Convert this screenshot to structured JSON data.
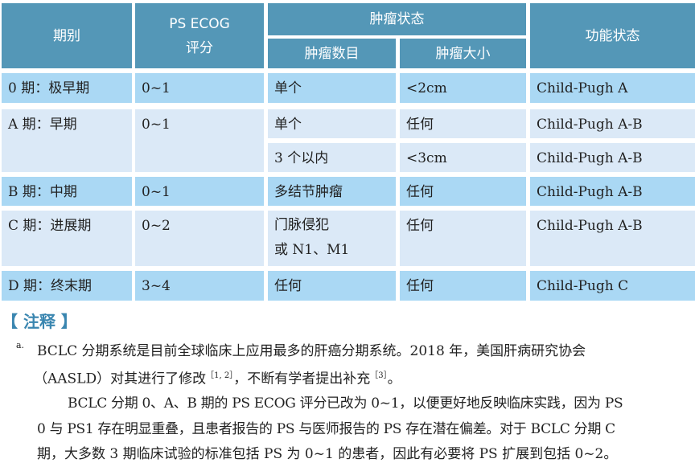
{
  "table": {
    "headers": {
      "stage": "期别",
      "ps": "PS ECOG",
      "ps2": "评分",
      "tumor_status": "肿瘤状态",
      "tumor_count": "肿瘤数目",
      "tumor_size": "肿瘤大小",
      "function": "功能状态"
    },
    "rows": [
      {
        "stage": "0 期：极早期",
        "ps": "0~1",
        "count": "单个",
        "size": "<2cm",
        "func": "Child-Pugh A"
      },
      {
        "stage": "A 期：早期",
        "ps": "0~1",
        "count": "单个",
        "size": "任何",
        "func": "Child-Pugh A-B",
        "count2": "3 个以内",
        "size2": "<3cm",
        "func2": "Child-Pugh A-B"
      },
      {
        "stage": "B 期：中期",
        "ps": "0~1",
        "count": "多结节肿瘤",
        "size": "任何",
        "func": "Child-Pugh A-B"
      },
      {
        "stage": "C 期：进展期",
        "ps": "0~2",
        "count": "门脉侵犯",
        "count_line2": "或 N1、M1",
        "size": "任何",
        "func": "Child-Pugh A-B"
      },
      {
        "stage": "D 期：终末期",
        "ps": "3~4",
        "count": "任何",
        "size": "任何",
        "func": "Child-Pugh C"
      }
    ]
  },
  "notes": {
    "title": "【 注释 】",
    "marker": "a.",
    "p1a": "BCLC 分期系统是目前全球临床上应用最多的肝癌分期系统。2018 年，美国肝病研究协会",
    "p1b": "（AASLD）对其进行了修改",
    "ref1": "［1, 2］",
    "p1c": "，不断有学者提出补充",
    "ref2": "［3］",
    "p1d": "。",
    "p2a": "BCLC 分期 0、A、B 期的 PS ECOG 评分已改为 0~1，以便更好地反映临床实践，因为 PS",
    "p2b": "0 与 PS1 存在明显重叠，且患者报告的 PS 与医师报告的 PS 存在潜在偏差。对于 BCLC 分期 C",
    "p2c": "期，大多数 3 期临床试验的标准包括 PS 为 0~1 的患者，因此有必要将 PS 扩展到包括 0~2。"
  }
}
